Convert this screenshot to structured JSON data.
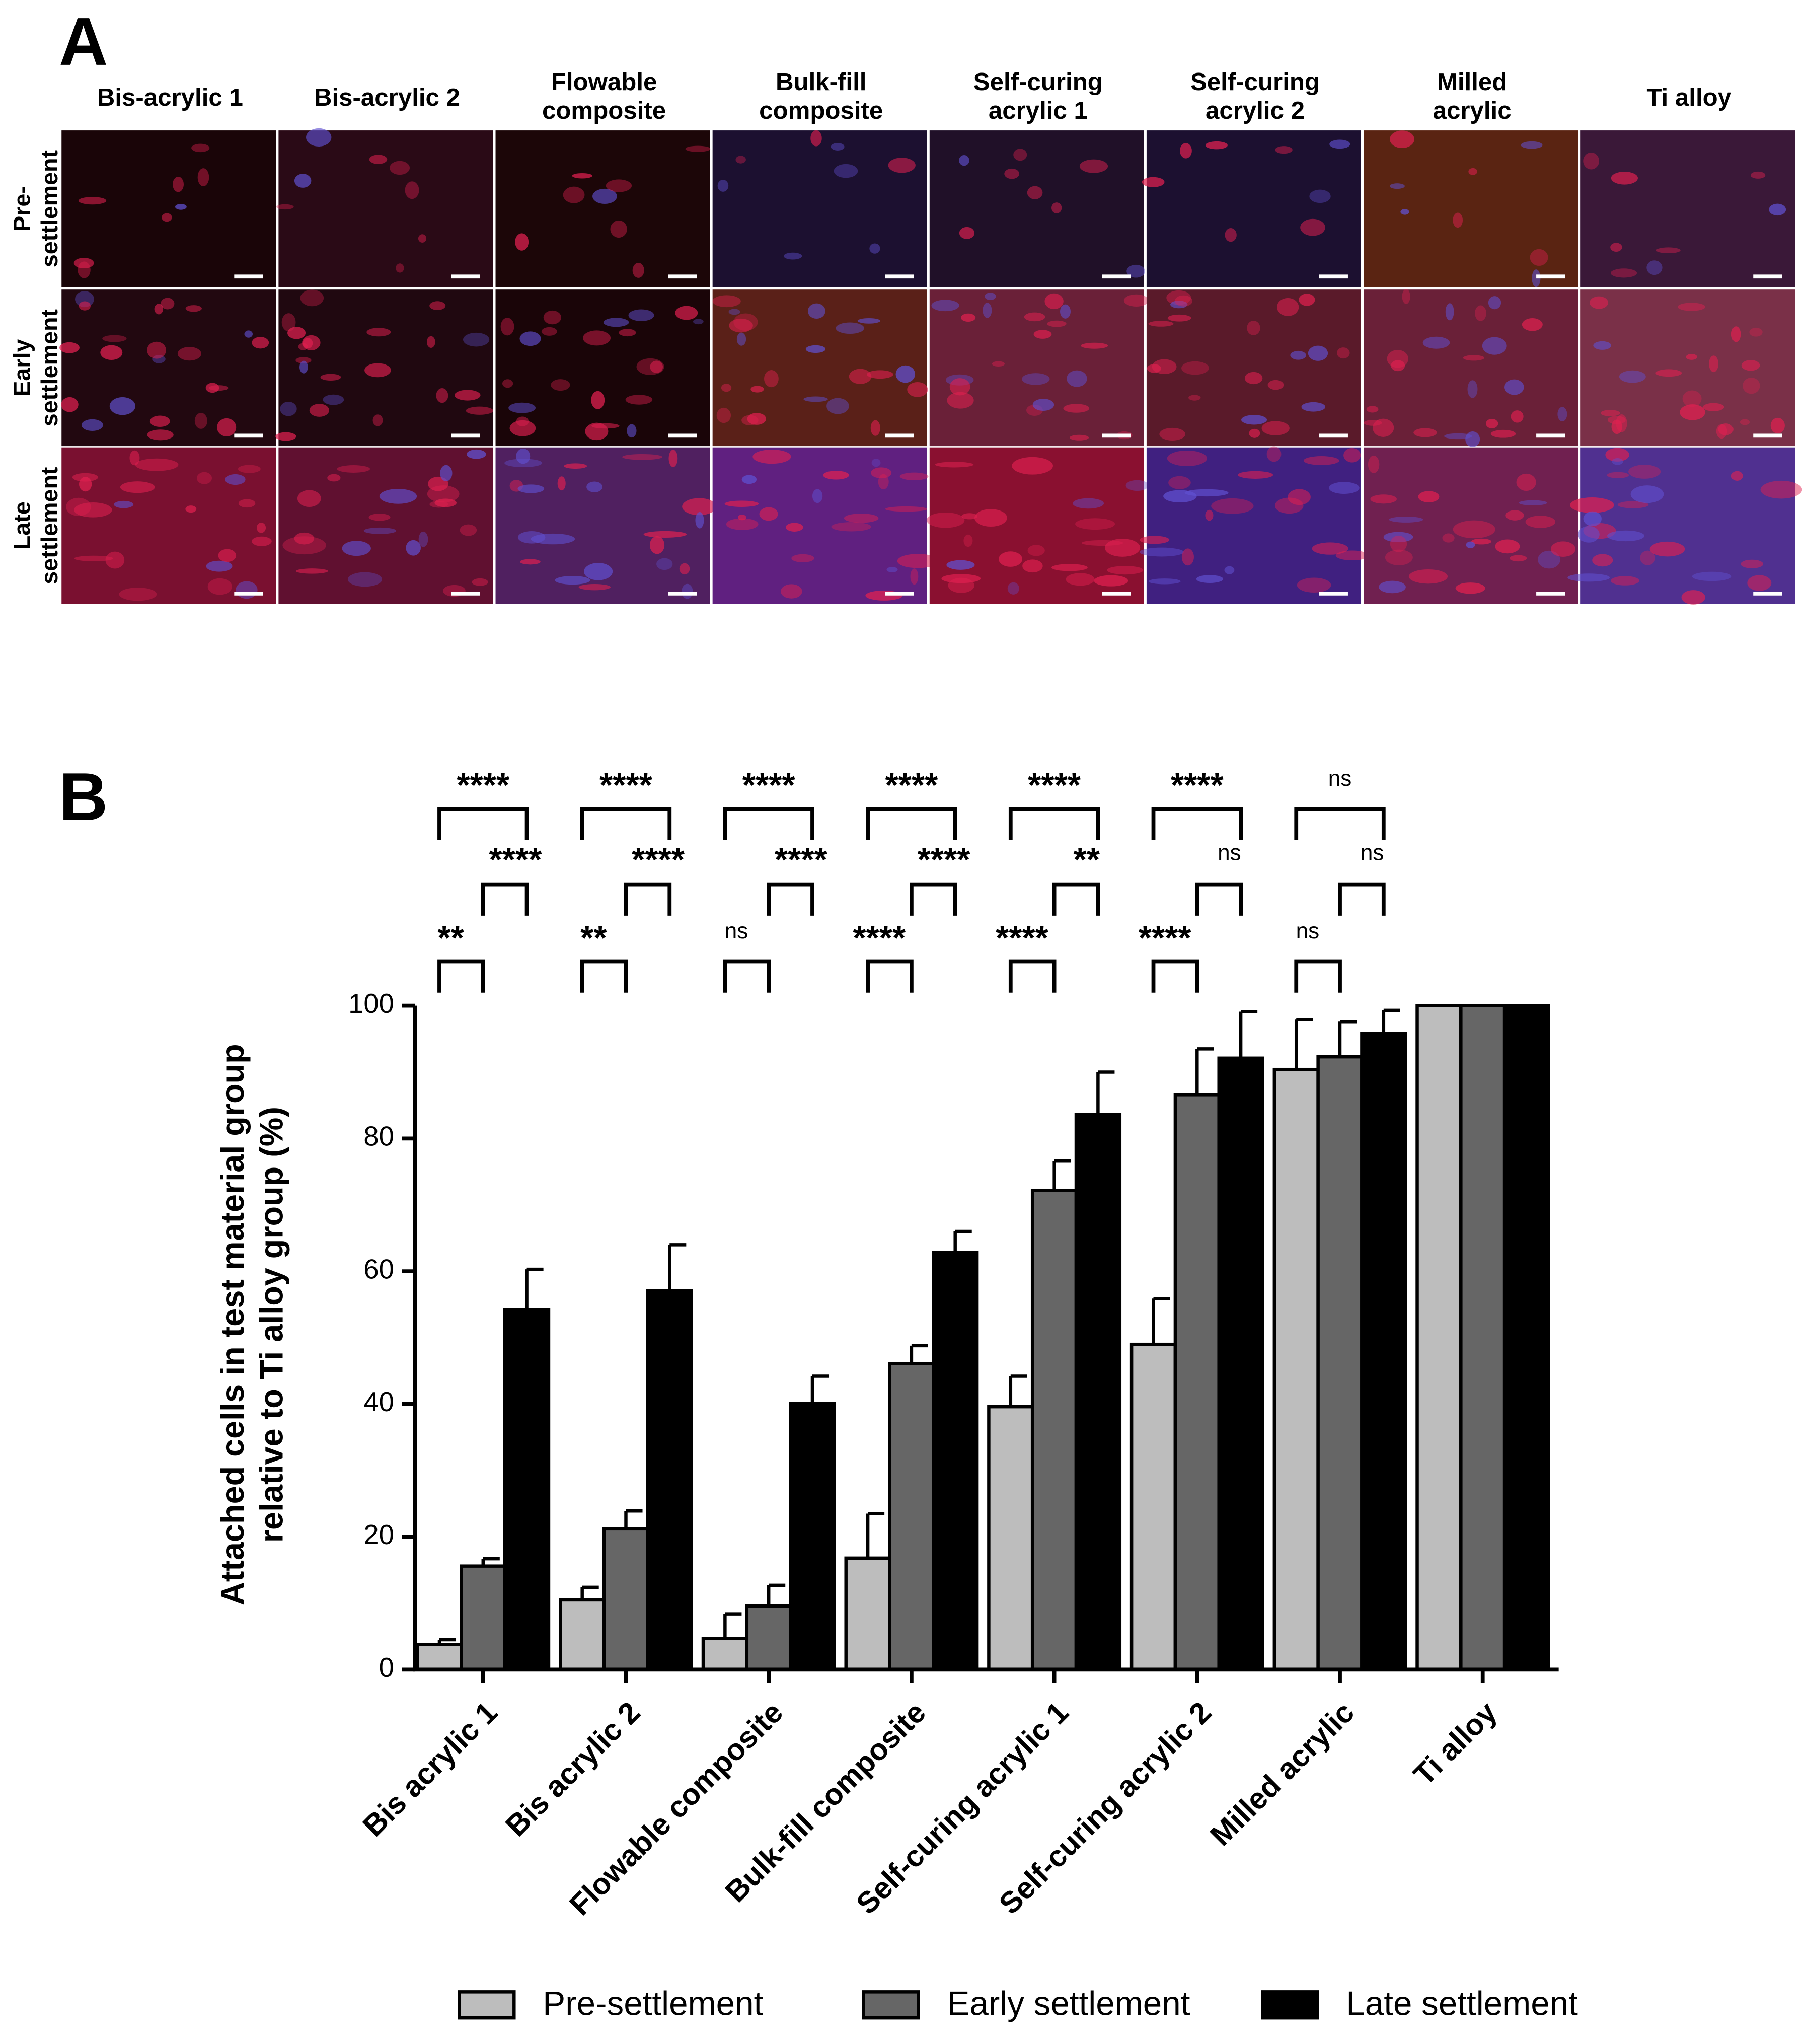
{
  "panel_a": {
    "label": "A",
    "columns": [
      [
        "Bis-acrylic 1"
      ],
      [
        "Bis-acrylic 2"
      ],
      [
        "Flowable",
        "composite"
      ],
      [
        "Bulk-fill",
        "composite"
      ],
      [
        "Self-curing",
        "acrylic 1"
      ],
      [
        "Self-curing",
        "acrylic 2"
      ],
      [
        "Milled",
        "acrylic"
      ],
      [
        "Ti alloy"
      ]
    ],
    "rows": [
      [
        "Pre-",
        "settlement"
      ],
      [
        "Early",
        "settlement"
      ],
      [
        "Late",
        "settlement"
      ]
    ]
  },
  "chart_data": {
    "type": "bar",
    "panel_label": "B",
    "ylabel": [
      "Attached cells in test material group",
      "relative to Ti alloy group  (%)"
    ],
    "categories": [
      "Bis acrylic 1",
      "Bis acrylic 2",
      "Flowable composite",
      "Bulk-fill composite",
      "Self-curing acrylic 1",
      "Self-curing acrylic 2",
      "Milled acrylic",
      "Ti alloy"
    ],
    "series": [
      {
        "name": "Pre-settlement",
        "color": "#bdbdbd",
        "values": [
          3.8,
          10.5,
          4.7,
          16.8,
          39.6,
          49.0,
          90.4,
          100
        ],
        "errors": [
          0.7,
          1.9,
          3.7,
          6.7,
          4.6,
          6.9,
          7.5,
          0
        ]
      },
      {
        "name": "Early settlement",
        "color": "#666666",
        "values": [
          15.6,
          21.2,
          9.6,
          46.1,
          72.2,
          86.6,
          92.3,
          100
        ],
        "errors": [
          1.1,
          2.7,
          3.1,
          2.7,
          4.4,
          6.9,
          5.3,
          0
        ]
      },
      {
        "name": "Late settlement",
        "color": "#000000",
        "values": [
          54.2,
          57.1,
          40.1,
          62.8,
          83.6,
          92.1,
          95.8,
          100
        ],
        "errors": [
          6.1,
          6.9,
          4.1,
          3.2,
          6.4,
          7.0,
          3.5,
          0
        ]
      }
    ],
    "significance": [
      [
        "****",
        "****",
        "**"
      ],
      [
        "****",
        "****",
        "**"
      ],
      [
        "****",
        "****",
        "ns"
      ],
      [
        "****",
        "****",
        "****"
      ],
      [
        "****",
        "**",
        "****"
      ],
      [
        "****",
        "ns",
        "****"
      ],
      [
        "ns",
        "ns",
        "ns"
      ],
      null
    ],
    "ylim": [
      0,
      100
    ],
    "yticks": [
      0,
      20,
      40,
      60,
      80,
      100
    ],
    "legend": "bottom"
  }
}
